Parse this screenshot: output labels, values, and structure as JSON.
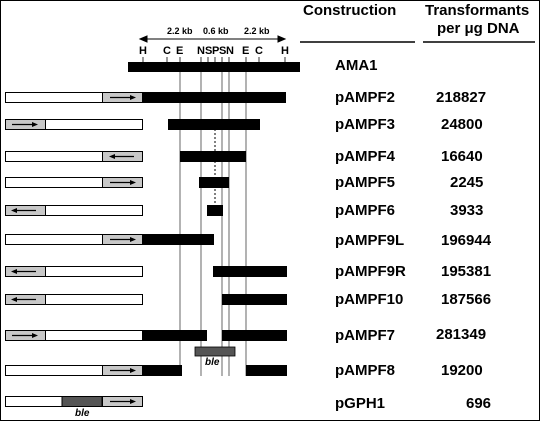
{
  "header": {
    "construction": "Construction",
    "transformants_line1": "Transformants",
    "transformants_line2": "per μg DNA"
  },
  "scale": {
    "left": "2.2 kb",
    "middle": "0.6 kb",
    "right": "2.2 kb"
  },
  "sites": [
    "H",
    "C",
    "E",
    "N",
    "S",
    "P",
    "S",
    "N",
    "E",
    "C",
    "H"
  ],
  "feature_label": "ble",
  "rows": [
    {
      "name": "AMA1",
      "count": ""
    },
    {
      "name": "pAMPF2",
      "count": "218827"
    },
    {
      "name": "pAMPF3",
      "count": "24800"
    },
    {
      "name": "pAMPF4",
      "count": "16640"
    },
    {
      "name": "pAMPF5",
      "count": "2245"
    },
    {
      "name": "pAMPF6",
      "count": "3933"
    },
    {
      "name": "pAMPF9L",
      "count": "196944"
    },
    {
      "name": "pAMPF9R",
      "count": "195381"
    },
    {
      "name": "pAMPF10",
      "count": "187566"
    },
    {
      "name": "pAMPF7",
      "count": "281349"
    },
    {
      "name": "pAMPF8",
      "count": "19200"
    },
    {
      "name": "pGPH1",
      "count": "696"
    }
  ]
}
